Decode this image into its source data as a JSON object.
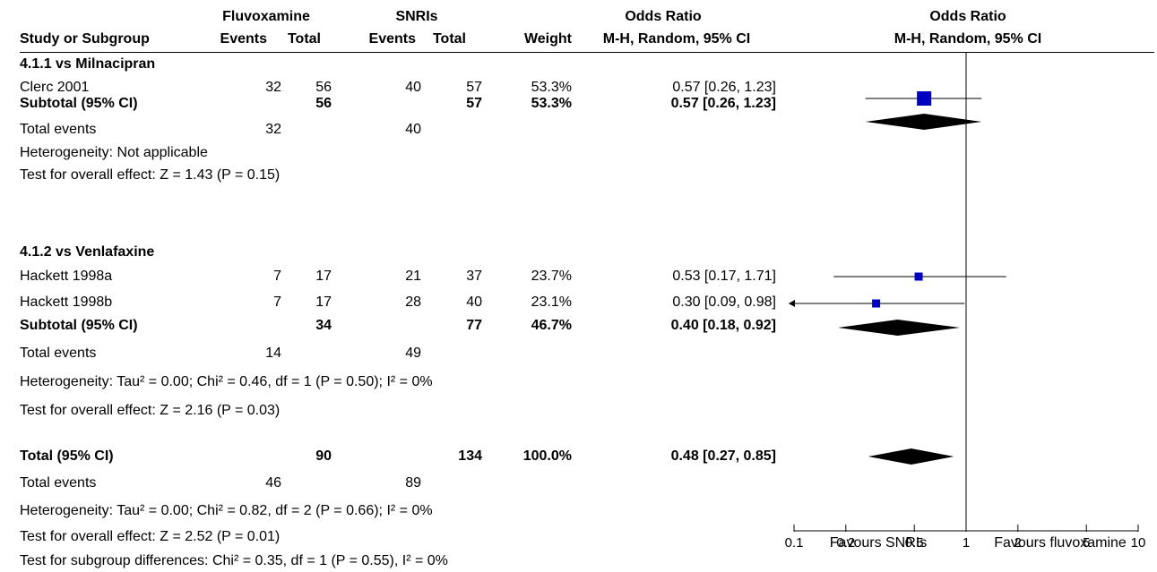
{
  "header": {
    "group1": "Fluvoxamine",
    "group2": "SNRIs",
    "odds_ratio_label": "Odds Ratio",
    "study_col": "Study or Subgroup",
    "events_label": "Events",
    "total_label": "Total",
    "weight_label": "Weight",
    "method_label": "M-H, Random, 95% CI",
    "plot_title": "Odds Ratio",
    "plot_method": "M-H, Random, 95% CI"
  },
  "subgroups": [
    {
      "title": "4.1.1 vs Milnacipran",
      "studies": [
        {
          "name": "Clerc 2001",
          "e1": "32",
          "t1": "56",
          "e2": "40",
          "t2": "57",
          "weight": "53.3%",
          "ci_text": "0.57 [0.26, 1.23]"
        }
      ],
      "subtotal": {
        "label": "Subtotal (95% CI)",
        "t1": "56",
        "t2": "57",
        "weight": "53.3%",
        "ci_text": "0.57 [0.26, 1.23]"
      },
      "total_events": {
        "label": "Total events",
        "e1": "32",
        "e2": "40"
      },
      "heterogeneity": "Heterogeneity: Not applicable",
      "overall_effect": "Test for overall effect: Z = 1.43 (P = 0.15)"
    },
    {
      "title": "4.1.2 vs Venlafaxine",
      "studies": [
        {
          "name": "Hackett 1998a",
          "e1": "7",
          "t1": "17",
          "e2": "21",
          "t2": "37",
          "weight": "23.7%",
          "ci_text": "0.53 [0.17, 1.71]"
        },
        {
          "name": "Hackett 1998b",
          "e1": "7",
          "t1": "17",
          "e2": "28",
          "t2": "40",
          "weight": "23.1%",
          "ci_text": "0.30 [0.09, 0.98]"
        }
      ],
      "subtotal": {
        "label": "Subtotal (95% CI)",
        "t1": "34",
        "t2": "77",
        "weight": "46.7%",
        "ci_text": "0.40 [0.18, 0.92]"
      },
      "total_events": {
        "label": "Total events",
        "e1": "14",
        "e2": "49"
      },
      "heterogeneity": "Heterogeneity: Tau² = 0.00; Chi² = 0.46, df = 1 (P = 0.50); I² = 0%",
      "overall_effect": "Test for overall effect: Z = 2.16 (P = 0.03)"
    }
  ],
  "total": {
    "label": "Total (95% CI)",
    "t1": "90",
    "t2": "134",
    "weight": "100.0%",
    "ci_text": "0.48 [0.27, 0.85]",
    "events_label": "Total events",
    "e1": "46",
    "e2": "89",
    "heterogeneity": "Heterogeneity: Tau² = 0.00; Chi² = 0.82, df = 2 (P = 0.66); I² = 0%",
    "overall_effect": "Test for overall effect: Z = 2.52 (P = 0.01)",
    "subgroup_diff": "Test for subgroup differences: Chi² = 0.35, df = 1 (P = 0.55), I² = 0%"
  },
  "chart_data": {
    "type": "scatter",
    "scale": "log",
    "xlim": [
      0.1,
      10
    ],
    "ticks": [
      "0.1",
      "0.2",
      "0.5",
      "1",
      "2",
      "5",
      "10"
    ],
    "tick_values": [
      0.1,
      0.2,
      0.5,
      1,
      2,
      5,
      10
    ],
    "favours_left": "Favours SNRIs",
    "favours_right": "Favours fluvoxamine",
    "marker_color": "#0000c0",
    "points": [
      {
        "study": "Clerc 2001",
        "or": 0.57,
        "lo": 0.26,
        "hi": 1.23,
        "weight": 53.3
      },
      {
        "study": "Hackett 1998a",
        "or": 0.53,
        "lo": 0.17,
        "hi": 1.71,
        "weight": 23.7
      },
      {
        "study": "Hackett 1998b",
        "or": 0.3,
        "lo": 0.09,
        "hi": 0.98,
        "weight": 23.1
      }
    ],
    "diamonds": [
      {
        "label": "Subtotal 4.1.1",
        "or": 0.57,
        "lo": 0.26,
        "hi": 1.23
      },
      {
        "label": "Subtotal 4.1.2",
        "or": 0.4,
        "lo": 0.18,
        "hi": 0.92
      },
      {
        "label": "Total",
        "or": 0.48,
        "lo": 0.27,
        "hi": 0.85
      }
    ]
  }
}
